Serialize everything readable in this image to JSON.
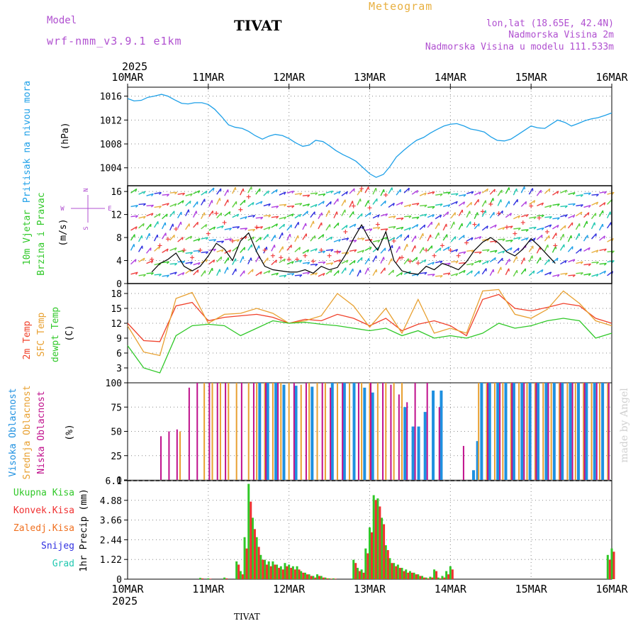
{
  "header": {
    "model_label": "Model",
    "model_name": "wrf-nmm_v3.9.1 e1km",
    "station": "TIVAT",
    "chart_kind": "Meteogram",
    "location_line1": "lon,lat (18.65E, 42.4N)",
    "location_line2": "Nadmorska Visina 2m",
    "location_line3": "Nadmorska Visina u modelu 111.533m",
    "footer_station": "TIVAT",
    "watermark": "made by Angel"
  },
  "colors": {
    "pressure": "#1ea0e8",
    "temp2m": "#f0402a",
    "sfc_temp": "#e8a030",
    "dewpoint": "#30c828",
    "wind_speed": "#000000",
    "gust": "#f04040",
    "cloud_high": "#1e90e0",
    "cloud_mid": "#e8a030",
    "cloud_low": "#c0108c",
    "precip_total": "#30c828",
    "precip_conv": "#f03030",
    "precip_strat": "#f07020",
    "snow": "#3030e0",
    "graupel": "#20c8b0",
    "purple_text": "#b050d0",
    "title_gold": "#e8b040"
  },
  "chart_data": [
    {
      "panel": "pressure",
      "type": "line",
      "y_labels": [
        "Pritisak na nivou mora",
        "(hPa)"
      ],
      "ylim": [
        1001,
        1017.5
      ],
      "yticks": [
        1004,
        1008,
        1012,
        1016
      ],
      "x_top_labels": [
        "10MAR",
        "11MAR",
        "12MAR",
        "13MAR",
        "14MAR",
        "15MAR",
        "16MAR"
      ],
      "x_top_year": "2025",
      "x": [
        0,
        0.08,
        0.17,
        0.25,
        0.33,
        0.42,
        0.5,
        0.58,
        0.67,
        0.75,
        0.83,
        0.92,
        1,
        1.08,
        1.17,
        1.25,
        1.33,
        1.42,
        1.5,
        1.58,
        1.67,
        1.75,
        1.83,
        1.92,
        2,
        2.08,
        2.17,
        2.25,
        2.33,
        2.42,
        2.5,
        2.58,
        2.67,
        2.75,
        2.83,
        2.92,
        3,
        3.08,
        3.17,
        3.25,
        3.33,
        3.42,
        3.5,
        3.58,
        3.67,
        3.75,
        3.83,
        3.92,
        4,
        4.08,
        4.17,
        4.25,
        4.33,
        4.42,
        4.5,
        4.58,
        4.67,
        4.75,
        4.83,
        4.92,
        5,
        5.08,
        5.17,
        5.25,
        5.33,
        5.42,
        5.5,
        5.58,
        5.67,
        5.75,
        5.83,
        5.92,
        6
      ],
      "values": [
        1015.6,
        1015.2,
        1015.3,
        1015.8,
        1016.0,
        1016.3,
        1016.0,
        1015.4,
        1014.8,
        1014.7,
        1014.9,
        1014.9,
        1014.6,
        1013.8,
        1012.5,
        1011.2,
        1010.8,
        1010.6,
        1010.1,
        1009.4,
        1008.8,
        1009.3,
        1009.6,
        1009.4,
        1008.9,
        1008.2,
        1007.6,
        1007.8,
        1008.6,
        1008.4,
        1007.7,
        1006.9,
        1006.2,
        1005.7,
        1005.1,
        1004.0,
        1003.0,
        1002.4,
        1002.9,
        1004.2,
        1005.8,
        1006.9,
        1007.8,
        1008.6,
        1009.1,
        1009.8,
        1010.4,
        1011.0,
        1011.3,
        1011.4,
        1011.0,
        1010.5,
        1010.3,
        1010.0,
        1009.2,
        1008.6,
        1008.5,
        1008.8,
        1009.5,
        1010.3,
        1011.0,
        1010.7,
        1010.6,
        1011.3,
        1012.0,
        1011.6,
        1011.0,
        1011.4,
        1011.9,
        1012.2,
        1012.4,
        1012.8,
        1013.2
      ]
    },
    {
      "panel": "wind",
      "type": "line",
      "y_labels": [
        "10m Vjetar",
        "Brzina i Pravac",
        "(m/s)"
      ],
      "compass": {
        "n": "N",
        "s": "S",
        "e": "E",
        "w": "W"
      },
      "ylim": [
        0,
        17
      ],
      "yticks": [
        0,
        4,
        8,
        12,
        16
      ],
      "series": [
        {
          "name": "speed",
          "x": [
            0.3,
            0.4,
            0.5,
            0.6,
            0.7,
            0.8,
            0.9,
            1.0,
            1.1,
            1.2,
            1.3,
            1.4,
            1.5,
            1.6,
            1.7,
            1.8,
            1.9,
            2.0,
            2.1,
            2.2,
            2.3,
            2.4,
            2.5,
            2.6,
            2.7,
            2.8,
            2.9,
            3.0,
            3.1,
            3.2,
            3.3,
            3.4,
            3.5,
            3.6,
            3.7,
            3.8,
            3.9,
            4.0,
            4.1,
            4.2,
            4.3,
            4.4,
            4.5,
            4.6,
            4.7,
            4.8,
            4.9,
            5.0,
            5.1,
            5.2,
            5.3
          ],
          "values": [
            2.0,
            3.5,
            4.2,
            5.3,
            3.0,
            2.2,
            3.0,
            4.8,
            7.0,
            6.0,
            4.0,
            7.4,
            8.8,
            5.5,
            3.0,
            2.4,
            2.2,
            2.0,
            2.0,
            2.4,
            1.8,
            3.0,
            2.4,
            2.8,
            5.0,
            7.8,
            10.2,
            7.6,
            5.8,
            9.0,
            4.0,
            2.2,
            1.8,
            1.6,
            3.0,
            2.4,
            3.5,
            3.0,
            2.4,
            3.8,
            5.8,
            7.2,
            8.0,
            7.0,
            5.5,
            4.8,
            6.0,
            7.8,
            6.5,
            5.0,
            3.5
          ]
        }
      ]
    },
    {
      "panel": "temperature",
      "type": "line",
      "y_labels": [
        "2m Temp",
        "SFC Temp",
        "dewpt Temp",
        "(C)"
      ],
      "ylim": [
        0,
        20
      ],
      "yticks": [
        3,
        6,
        9,
        12,
        15,
        18
      ],
      "x": [
        0,
        0.2,
        0.4,
        0.6,
        0.8,
        1.0,
        1.2,
        1.4,
        1.6,
        1.8,
        2.0,
        2.2,
        2.4,
        2.6,
        2.8,
        3.0,
        3.2,
        3.4,
        3.6,
        3.8,
        4.0,
        4.2,
        4.4,
        4.6,
        4.8,
        5.0,
        5.2,
        5.4,
        5.6,
        5.8,
        6.0
      ],
      "series": [
        {
          "name": "2m Temp",
          "values": [
            12.0,
            8.5,
            8.3,
            15.5,
            16.2,
            12.5,
            13.2,
            13.5,
            13.8,
            13.2,
            12.0,
            12.8,
            12.5,
            13.8,
            13.0,
            11.5,
            13.0,
            10.5,
            11.8,
            12.5,
            11.5,
            9.5,
            16.8,
            17.8,
            15.0,
            14.5,
            15.2,
            16.0,
            15.5,
            13.0,
            12.0
          ]
        },
        {
          "name": "SFC Temp",
          "values": [
            11.5,
            6.2,
            5.5,
            17.0,
            18.2,
            12.0,
            13.8,
            14.0,
            15.0,
            14.0,
            12.0,
            12.5,
            13.5,
            18.0,
            15.5,
            11.2,
            15.0,
            10.0,
            16.8,
            10.0,
            11.0,
            10.0,
            18.5,
            18.8,
            13.8,
            13.0,
            14.8,
            18.5,
            16.0,
            12.5,
            11.5
          ]
        },
        {
          "name": "dewpt Temp",
          "values": [
            7.5,
            3.0,
            2.0,
            9.5,
            11.5,
            11.8,
            11.5,
            9.5,
            11.0,
            12.5,
            12.0,
            12.2,
            11.8,
            11.5,
            11.0,
            10.5,
            11.0,
            9.5,
            10.5,
            9.0,
            9.5,
            9.0,
            10.0,
            12.0,
            11.0,
            11.5,
            12.5,
            13.0,
            12.5,
            9.0,
            10.0
          ]
        }
      ]
    },
    {
      "panel": "clouds",
      "type": "bar",
      "y_labels": [
        "Visoka Oblacnost",
        "Srednja Oblacnost",
        "Niska Oblacnost",
        "(%)"
      ],
      "ylim": [
        0,
        100
      ],
      "yticks": [
        0,
        25,
        50,
        75,
        100
      ],
      "series": [
        {
          "name": "Visoka Oblacnost",
          "x": [
            1.65,
            1.75,
            1.85,
            1.95,
            2.1,
            2.3,
            2.55,
            2.7,
            2.82,
            2.95,
            3.05,
            3.45,
            3.55,
            3.62,
            3.7,
            3.8,
            3.9,
            4.3,
            4.35,
            4.4,
            4.5,
            4.6,
            4.7,
            4.8,
            4.9,
            5.0,
            5.1,
            5.2,
            5.3,
            5.4,
            5.5,
            5.6,
            5.7,
            5.8,
            5.9
          ],
          "values": [
            100,
            100,
            100,
            98,
            97,
            96,
            100,
            100,
            100,
            95,
            90,
            75,
            55,
            55,
            70,
            92,
            92,
            10,
            40,
            100,
            100,
            100,
            100,
            100,
            100,
            100,
            100,
            100,
            100,
            100,
            100,
            100,
            100,
            100,
            100
          ]
        },
        {
          "name": "Srednja Oblacnost",
          "x": [
            0.65,
            0.95,
            1.05,
            1.15,
            1.25,
            1.35,
            1.5,
            1.6,
            1.7,
            1.8,
            1.9,
            2.0,
            2.15,
            2.25,
            2.35,
            2.45,
            2.6,
            2.75,
            2.9,
            3.0,
            3.1,
            3.2,
            3.3,
            3.4,
            4.35,
            4.45,
            4.55,
            4.65,
            4.75,
            4.85,
            4.95,
            5.05,
            5.15,
            5.25,
            5.35,
            5.45,
            5.55,
            5.65,
            5.75,
            5.85,
            5.95
          ],
          "values": [
            50,
            100,
            100,
            100,
            100,
            100,
            100,
            100,
            100,
            100,
            100,
            100,
            98,
            100,
            100,
            100,
            100,
            100,
            100,
            100,
            100,
            100,
            100,
            100,
            100,
            100,
            100,
            100,
            100,
            100,
            100,
            100,
            100,
            100,
            100,
            100,
            100,
            100,
            100,
            100,
            100
          ]
        },
        {
          "name": "Niska Oblacnost",
          "x": [
            0.4,
            0.5,
            0.6,
            0.75,
            0.85,
            1.0,
            1.1,
            1.2,
            1.4,
            1.55,
            1.7,
            1.85,
            2.05,
            2.2,
            2.4,
            2.5,
            2.65,
            2.85,
            3.0,
            3.15,
            3.25,
            3.35,
            3.45,
            3.55,
            3.7,
            3.85,
            4.15,
            4.45,
            4.6,
            4.75,
            4.9,
            5.05,
            5.2,
            5.35,
            5.5,
            5.65,
            5.8,
            5.95
          ],
          "values": [
            45,
            50,
            52,
            95,
            100,
            100,
            100,
            100,
            100,
            100,
            100,
            100,
            100,
            100,
            100,
            95,
            100,
            100,
            100,
            100,
            98,
            88,
            80,
            100,
            100,
            75,
            35,
            100,
            100,
            100,
            100,
            100,
            100,
            100,
            100,
            100,
            100,
            100
          ]
        }
      ]
    },
    {
      "panel": "precipitation",
      "type": "bar",
      "y_labels": [
        "1hr Precip (mm)"
      ],
      "legend": [
        "Ukupna Kisa",
        "Konvek.Kisa",
        "Zaledj.Kisa",
        "Snijeg",
        "Grad"
      ],
      "ylim": [
        0,
        6.1
      ],
      "yticks": [
        "0",
        "1.22",
        "2.44",
        "3.66",
        "4.88",
        "6.1"
      ],
      "x_labels": [
        "10MAR",
        "11MAR",
        "12MAR",
        "13MAR",
        "14MAR",
        "15MAR",
        "16MAR"
      ],
      "x_year": "2025",
      "x": [
        0.9,
        1.0,
        1.2,
        1.35,
        1.4,
        1.45,
        1.5,
        1.55,
        1.6,
        1.65,
        1.7,
        1.75,
        1.8,
        1.85,
        1.9,
        1.95,
        2.0,
        2.05,
        2.1,
        2.15,
        2.2,
        2.25,
        2.3,
        2.35,
        2.4,
        2.45,
        2.5,
        2.55,
        2.8,
        2.85,
        2.9,
        2.95,
        3.0,
        3.05,
        3.1,
        3.15,
        3.2,
        3.25,
        3.3,
        3.35,
        3.4,
        3.45,
        3.5,
        3.55,
        3.6,
        3.65,
        3.7,
        3.75,
        3.8,
        3.85,
        3.9,
        3.95,
        4.0,
        5.95,
        6.0
      ],
      "series": [
        {
          "name": "Ukupna Kisa",
          "values": [
            0.08,
            0.05,
            0.1,
            1.1,
            0.5,
            2.6,
            5.9,
            3.8,
            2.6,
            1.5,
            1.2,
            1.1,
            1.1,
            0.9,
            0.8,
            1.0,
            0.9,
            0.8,
            0.8,
            0.5,
            0.4,
            0.3,
            0.2,
            0.3,
            0.2,
            0.1,
            0.05,
            0.05,
            1.2,
            0.7,
            0.6,
            1.9,
            3.2,
            5.2,
            5.0,
            3.8,
            2.1,
            1.3,
            1.0,
            0.9,
            0.7,
            0.6,
            0.5,
            0.4,
            0.3,
            0.2,
            0.1,
            0.15,
            0.6,
            0.1,
            0.2,
            0.5,
            0.8,
            1.5,
            1.9
          ]
        },
        {
          "name": "Konvek.Kisa",
          "values": [
            0.05,
            0.03,
            0.05,
            0.9,
            0.3,
            1.9,
            4.8,
            3.1,
            2.0,
            1.2,
            0.9,
            0.8,
            0.9,
            0.7,
            0.6,
            0.8,
            0.7,
            0.6,
            0.6,
            0.4,
            0.3,
            0.2,
            0.1,
            0.2,
            0.1,
            0.05,
            0.03,
            0.03,
            1.0,
            0.5,
            0.4,
            1.6,
            2.9,
            4.9,
            4.5,
            3.4,
            1.8,
            1.0,
            0.8,
            0.7,
            0.5,
            0.4,
            0.4,
            0.3,
            0.2,
            0.1,
            0.05,
            0.1,
            0.5,
            0.05,
            0.1,
            0.3,
            0.6,
            1.2,
            1.7
          ]
        }
      ]
    }
  ]
}
